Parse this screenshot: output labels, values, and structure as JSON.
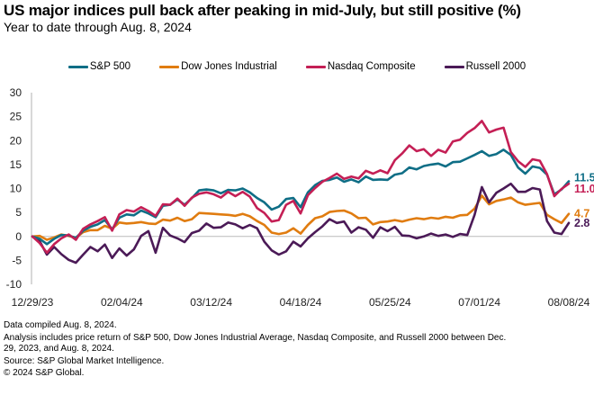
{
  "header": {
    "title": "US major indices pull back after peaking in mid-July, but still positive (%)",
    "subtitle": "Year to date through Aug. 8, 2024"
  },
  "footer": {
    "notes": [
      "Data compiled Aug. 8, 2024.",
      "Analysis includes price return of S&P 500, Dow Jones Industrial Average, Nasdaq Composite, and Russell 2000 between Dec. 29, 2023, and Aug. 8, 2024.",
      "Source: S&P Global Market Intelligence.",
      "© 2024 S&P Global."
    ]
  },
  "chart_data": {
    "type": "line",
    "title": "US major indices pull back after peaking in mid-July, but still positive (%)",
    "subtitle": "Year to date through Aug. 8, 2024",
    "xlabel": "",
    "ylabel": "",
    "ylim": [
      -10,
      30
    ],
    "yticks": [
      30,
      25,
      20,
      15,
      10,
      5,
      0,
      -5,
      -10
    ],
    "xticks": [
      "12/29/23",
      "02/04/24",
      "03/12/24",
      "04/18/24",
      "05/25/24",
      "07/01/24",
      "08/08/24"
    ],
    "grid": false,
    "zero_line": true,
    "legend_position": "top-center",
    "series": [
      {
        "name": "S&P 500",
        "color": "#0f6e86",
        "end_label": "11.5",
        "values": [
          0,
          -0.5,
          -1.6,
          -0.5,
          0.3,
          0.2,
          -0.3,
          1.2,
          2.0,
          2.5,
          3.4,
          1.5,
          3.9,
          4.6,
          4.4,
          5.4,
          4.8,
          4.0,
          6.4,
          6.6,
          7.7,
          6.6,
          8.0,
          9.6,
          9.8,
          9.6,
          9.0,
          9.7,
          9.6,
          10.0,
          9.2,
          8.0,
          7.1,
          5.6,
          6.2,
          7.8,
          8.0,
          6.1,
          9.2,
          10.7,
          11.6,
          11.8,
          12.3,
          11.4,
          11.9,
          11.3,
          12.5,
          11.8,
          11.9,
          11.8,
          12.9,
          13.2,
          14.4,
          14.0,
          14.7,
          15.0,
          15.2,
          14.6,
          15.5,
          15.6,
          16.3,
          17.0,
          17.8,
          16.8,
          17.2,
          18.1,
          17.0,
          14.4,
          13.1,
          14.6,
          14.3,
          12.9,
          8.8,
          9.8,
          11.5
        ]
      },
      {
        "name": "Dow Jones Industrial",
        "color": "#e07c10",
        "end_label": "4.7",
        "values": [
          0,
          0.1,
          -0.7,
          -0.2,
          0.4,
          0.1,
          -0.3,
          0.9,
          1.3,
          1.3,
          2.2,
          1.6,
          2.9,
          2.7,
          2.8,
          3.0,
          2.7,
          2.6,
          3.5,
          3.3,
          3.9,
          3.2,
          3.6,
          4.9,
          4.8,
          4.7,
          4.6,
          4.5,
          4.3,
          4.7,
          4.2,
          3.2,
          2.4,
          0.8,
          0.5,
          0.8,
          1.7,
          0.6,
          2.4,
          3.8,
          4.2,
          5.1,
          5.3,
          5.4,
          4.8,
          3.8,
          3.9,
          2.5,
          3.0,
          3.1,
          3.4,
          3.1,
          3.5,
          3.8,
          3.6,
          3.9,
          3.7,
          4.1,
          3.9,
          4.4,
          4.5,
          5.8,
          8.5,
          6.7,
          7.4,
          7.7,
          8.1,
          7.1,
          6.6,
          6.8,
          7.0,
          4.5,
          3.6,
          2.8,
          4.7
        ]
      },
      {
        "name": "Nasdaq Composite",
        "color": "#c41f55",
        "end_label": "11.0",
        "values": [
          0,
          -1.4,
          -3.4,
          -1.6,
          -0.4,
          0.4,
          -0.7,
          1.6,
          2.5,
          3.2,
          4.0,
          1.2,
          4.6,
          5.5,
          5.2,
          6.1,
          5.3,
          4.3,
          6.7,
          6.6,
          7.9,
          6.4,
          8.1,
          8.9,
          9.2,
          8.8,
          8.1,
          9.3,
          8.4,
          9.3,
          8.3,
          5.9,
          4.9,
          3.1,
          3.4,
          6.6,
          7.4,
          4.8,
          8.6,
          10.1,
          11.4,
          12.2,
          13.1,
          12.0,
          12.5,
          12.1,
          13.7,
          13.1,
          13.8,
          13.2,
          15.9,
          17.3,
          19.0,
          17.8,
          18.2,
          16.8,
          18.1,
          17.5,
          19.8,
          20.2,
          21.6,
          22.6,
          24.1,
          21.7,
          22.3,
          22.7,
          17.6,
          15.7,
          14.5,
          16.1,
          15.8,
          13.0,
          8.4,
          9.9,
          11.0
        ]
      },
      {
        "name": "Russell 2000",
        "color": "#4b1a57",
        "end_label": "2.8",
        "values": [
          0,
          -1.0,
          -3.8,
          -2.2,
          -3.7,
          -4.9,
          -5.5,
          -3.8,
          -2.2,
          -3.1,
          -1.7,
          -4.5,
          -2.5,
          -4.0,
          -2.7,
          0.1,
          1.1,
          -3.4,
          1.8,
          0.2,
          -0.4,
          -1.2,
          0.7,
          1.2,
          2.7,
          1.8,
          1.9,
          2.9,
          2.5,
          1.7,
          2.4,
          1.7,
          -1.1,
          -2.9,
          -3.8,
          -3.1,
          -1.1,
          -2.1,
          -0.4,
          0.9,
          2.1,
          3.6,
          2.8,
          3.1,
          0.8,
          1.9,
          1.4,
          -0.3,
          1.9,
          1.1,
          2.0,
          0.2,
          0.1,
          -0.4,
          0.0,
          0.6,
          0.1,
          0.4,
          -0.1,
          0.5,
          0.3,
          4.5,
          10.3,
          7.1,
          9.1,
          10.0,
          11.0,
          9.3,
          9.3,
          10.1,
          9.8,
          3.2,
          0.8,
          0.5,
          2.8
        ]
      }
    ]
  }
}
